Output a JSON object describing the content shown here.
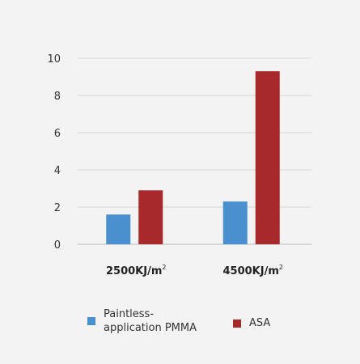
{
  "colors": {
    "background": "#f3f3f3",
    "grid": "#d6d6d6",
    "axis": "#bbbbbb"
  },
  "chart_data": {
    "type": "bar",
    "title": "",
    "xlabel": "",
    "ylabel": "",
    "ylim": [
      0,
      10
    ],
    "yticks": [
      0,
      2,
      4,
      6,
      8,
      10
    ],
    "grid": true,
    "legend_position": "bottom",
    "categories": [
      {
        "main": "2500KJ/m",
        "sup": "2"
      },
      {
        "main": "4500KJ/m",
        "sup": "2"
      }
    ],
    "series": [
      {
        "name": "Paintless-application PMMA",
        "name_lines": [
          "Paintless-",
          "application PMMA"
        ],
        "color": "#4a90cf",
        "values": [
          1.6,
          2.3
        ]
      },
      {
        "name": "ASA",
        "name_lines": [
          "ASA"
        ],
        "color": "#a8292c",
        "values": [
          2.9,
          9.3
        ]
      }
    ]
  }
}
